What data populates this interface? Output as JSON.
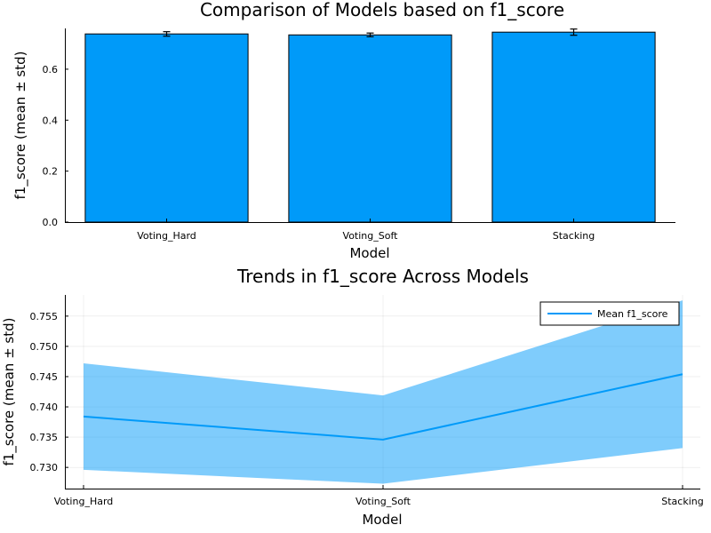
{
  "chart_data": [
    {
      "type": "bar",
      "title": "Comparison of Models based on f1_score",
      "xlabel": "Model",
      "ylabel": "f1_score (mean ± std)",
      "categories": [
        "Voting_Hard",
        "Voting_Soft",
        "Stacking"
      ],
      "values": [
        0.7384,
        0.7346,
        0.7454
      ],
      "errors": [
        0.0088,
        0.0073,
        0.0122
      ],
      "ylim": [
        0,
        0.76
      ],
      "yticks": [
        0.0,
        0.2,
        0.4,
        0.6
      ],
      "ytick_labels": [
        "0.0",
        "0.2",
        "0.4",
        "0.6"
      ],
      "grid": false,
      "color": "#009af9"
    },
    {
      "type": "line",
      "title": "Trends in f1_score Across Models",
      "xlabel": "Model",
      "ylabel": "f1_score (mean ± std)",
      "categories": [
        "Voting_Hard",
        "Voting_Soft",
        "Stacking"
      ],
      "series": [
        {
          "name": "Mean f1_score",
          "values": [
            0.7384,
            0.7346,
            0.7454
          ],
          "band_lower": [
            0.7296,
            0.7273,
            0.7332
          ],
          "band_upper": [
            0.7472,
            0.7419,
            0.7576
          ]
        }
      ],
      "ylim": [
        0.7265,
        0.7585
      ],
      "yticks": [
        0.73,
        0.735,
        0.74,
        0.745,
        0.75,
        0.755
      ],
      "ytick_labels": [
        "0.730",
        "0.735",
        "0.740",
        "0.745",
        "0.750",
        "0.755"
      ],
      "grid": true,
      "legend": "top-right",
      "color": "#009af9"
    }
  ]
}
